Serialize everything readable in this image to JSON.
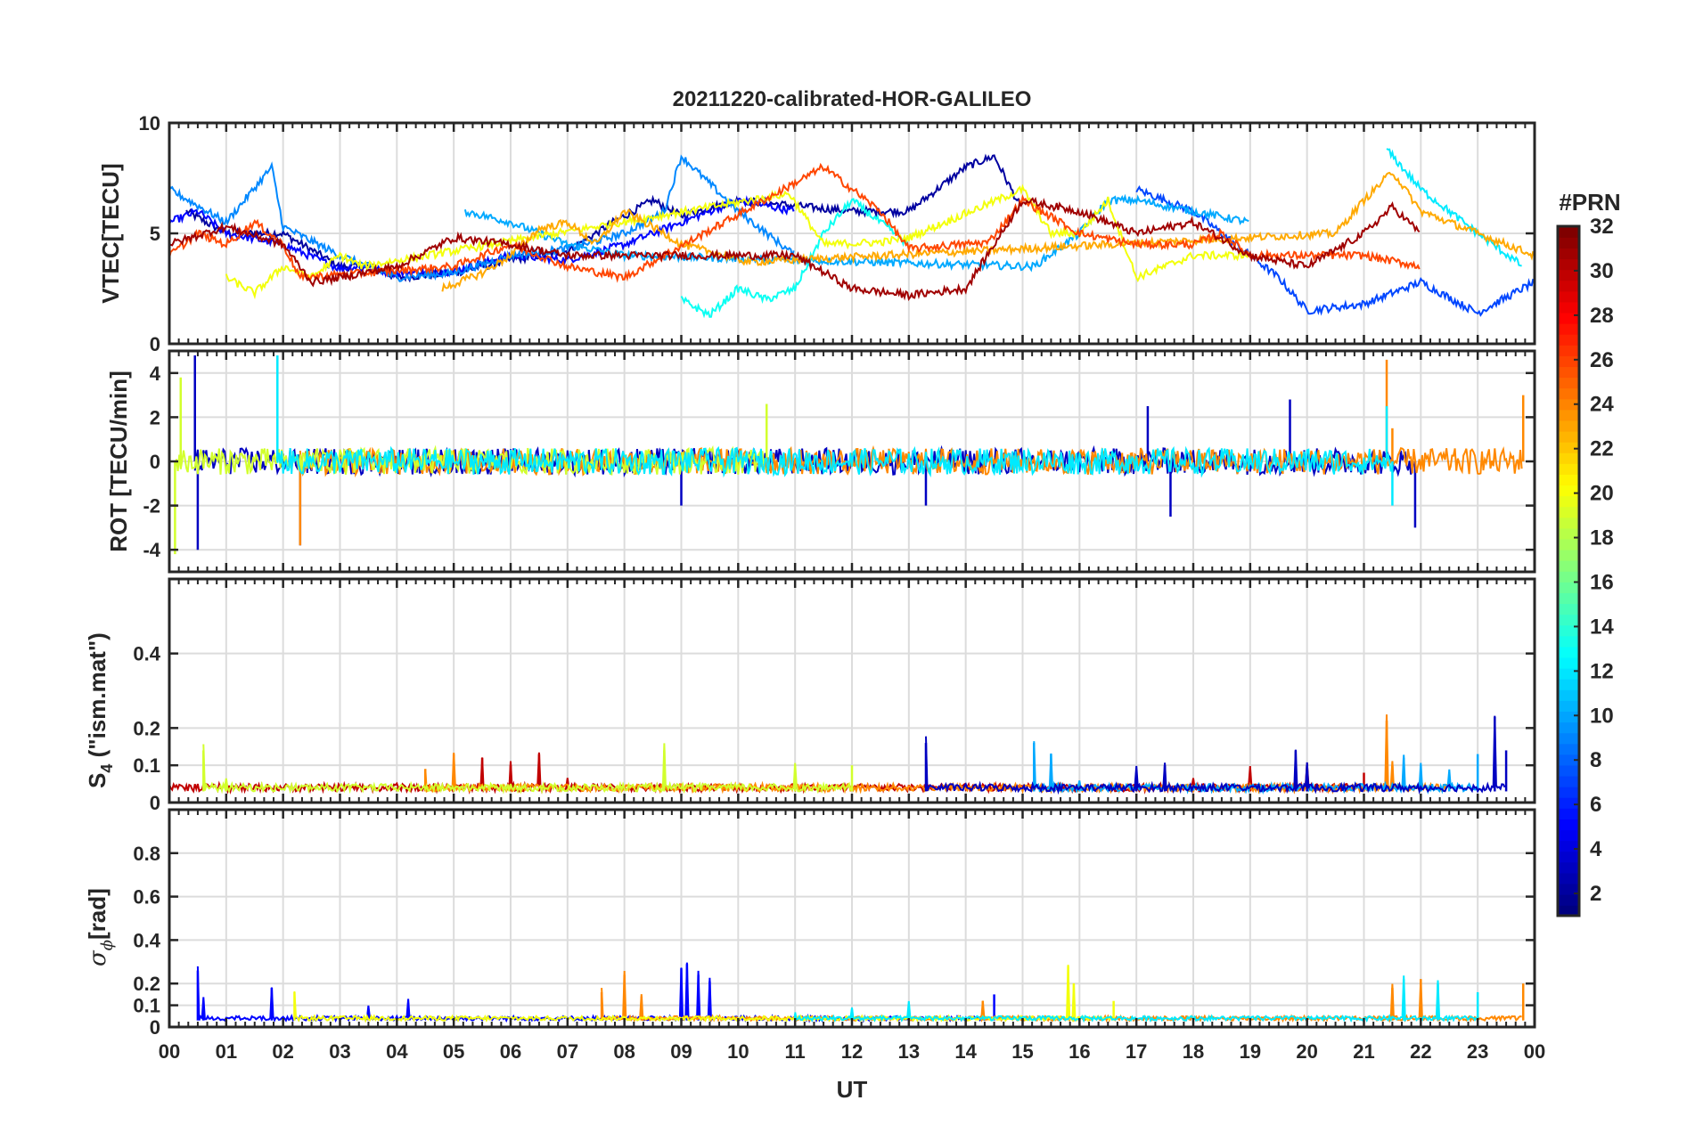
{
  "figure_title": "20211220-calibrated-HOR-GALILEO",
  "colorbar": {
    "label": "#PRN",
    "range": [
      1,
      32
    ],
    "ticks": [
      2,
      4,
      6,
      8,
      10,
      12,
      14,
      16,
      18,
      20,
      22,
      24,
      26,
      28,
      30,
      32
    ],
    "colormap": "jet"
  },
  "colors": {
    "axis": "#262626",
    "grid": "#dcdcdc",
    "background": "#ffffff"
  },
  "x_axis": {
    "label": "UT",
    "range": [
      0,
      24
    ],
    "ticks": [
      0,
      1,
      2,
      3,
      4,
      5,
      6,
      7,
      8,
      9,
      10,
      11,
      12,
      13,
      14,
      15,
      16,
      17,
      18,
      19,
      20,
      21,
      22,
      23,
      24
    ],
    "tick_labels": [
      "00",
      "01",
      "02",
      "03",
      "04",
      "05",
      "06",
      "07",
      "08",
      "09",
      "10",
      "11",
      "12",
      "13",
      "14",
      "15",
      "16",
      "17",
      "18",
      "19",
      "20",
      "21",
      "22",
      "23",
      "00"
    ]
  },
  "chart_data": [
    {
      "type": "line",
      "panel": "vtec",
      "ylabel": "VTEC[TECU]",
      "ylim": [
        0,
        10
      ],
      "yticks": [
        0,
        5,
        10
      ],
      "grid": true,
      "series": [
        {
          "name": "PRN 2",
          "prn": 2,
          "x": [
            0.3,
            1,
            2,
            3,
            3.5,
            4,
            5,
            6,
            7,
            7.8,
            8.5,
            9,
            10,
            12,
            13,
            14,
            14.5,
            15
          ],
          "y": [
            6,
            5,
            5,
            3.5,
            3.5,
            3,
            3.2,
            3.8,
            4.2,
            5.5,
            6.5,
            5.8,
            6.5,
            6,
            6,
            8,
            8.5,
            6
          ]
        },
        {
          "name": "PRN 5",
          "prn": 5,
          "x": [
            0,
            0.5,
            1,
            2,
            3,
            3.3,
            4,
            5,
            6,
            7,
            8,
            9,
            10,
            11
          ],
          "y": [
            5.5,
            6,
            5,
            4.5,
            3.4,
            3.5,
            3.2,
            3.3,
            4,
            3.8,
            4.5,
            5.5,
            6.5,
            6
          ]
        },
        {
          "name": "PRN 7",
          "prn": 7,
          "x": [
            17,
            18,
            19,
            19.5,
            20,
            21,
            22,
            22.7,
            23,
            24
          ],
          "y": [
            7,
            6,
            4,
            3,
            1.5,
            1.8,
            2.8,
            1.8,
            1.4,
            2.8
          ]
        },
        {
          "name": "PRN 9",
          "prn": 9,
          "x": [
            0,
            1,
            1.8,
            2,
            3,
            4,
            5,
            6,
            7,
            8,
            8.7,
            9,
            10,
            11
          ],
          "y": [
            7,
            5.5,
            8,
            5.3,
            4,
            3,
            3.2,
            4,
            4.3,
            5,
            6,
            8.5,
            6,
            4
          ]
        },
        {
          "name": "PRN 10",
          "prn": 10,
          "x": [
            5.2,
            6,
            7,
            8,
            15.2,
            16,
            16.5,
            17,
            18,
            19
          ],
          "y": [
            6,
            5.5,
            4.5,
            4,
            3.5,
            5,
            6.5,
            6.5,
            6,
            5.5
          ]
        },
        {
          "name": "PRN 13",
          "prn": 13,
          "x": [
            9,
            9.5,
            10,
            10.5,
            11,
            11.5,
            12,
            13
          ],
          "y": [
            2,
            1.3,
            2.5,
            2,
            2.5,
            5,
            6.5,
            4.5
          ]
        },
        {
          "name": "PRN 12",
          "prn": 12,
          "x": [
            21.4,
            22,
            23,
            23.8
          ],
          "y": [
            8.8,
            7,
            5,
            3.5
          ]
        },
        {
          "name": "PRN 20",
          "prn": 20,
          "x": [
            1,
            1.5,
            2,
            2.5,
            3,
            3.4,
            10.9,
            11.5,
            12.5,
            13,
            15,
            15.5,
            16,
            16.5,
            17,
            18,
            19
          ],
          "y": [
            3,
            2.3,
            3.5,
            3,
            4,
            3.5,
            6.8,
            4.5,
            4.6,
            4.8,
            7,
            5,
            5,
            6.5,
            3,
            4,
            4
          ]
        },
        {
          "name": "PRN 23",
          "prn": 23,
          "x": [
            4.8,
            5.5,
            6,
            6.5,
            7,
            7.5,
            8,
            8.7,
            9,
            10.2,
            20.5,
            21,
            21.5,
            22,
            23,
            24
          ],
          "y": [
            2.5,
            3.2,
            4,
            5.2,
            5.5,
            4.5,
            6,
            5,
            4.5,
            3.7,
            5,
            6.5,
            7.8,
            6,
            5,
            4
          ]
        },
        {
          "name": "PRN 26",
          "prn": 26,
          "x": [
            0,
            0.5,
            1,
            1.5,
            2,
            2.3,
            5,
            6,
            7,
            8,
            11.5,
            12,
            12.5,
            13,
            14.4,
            15,
            16,
            17,
            18,
            18.5,
            19,
            20,
            21,
            22
          ],
          "y": [
            4,
            5,
            4.5,
            5.5,
            4.5,
            3,
            3.5,
            4.5,
            3.5,
            3,
            8,
            7,
            6,
            4.3,
            4.6,
            6.5,
            5,
            4.5,
            4.5,
            5,
            4,
            4,
            4,
            3.5
          ]
        },
        {
          "name": "PRN 31",
          "prn": 31,
          "x": [
            0,
            1,
            2,
            2.5,
            3,
            4,
            5,
            6,
            7,
            11,
            12,
            13,
            14,
            15,
            16,
            17,
            18,
            19,
            20,
            21,
            21.5,
            22
          ],
          "y": [
            4.5,
            5.3,
            4.5,
            2.8,
            3,
            3.5,
            4.8,
            4.5,
            4,
            4,
            2.5,
            2.2,
            2.5,
            6.5,
            6,
            5,
            5.5,
            4,
            3.5,
            5,
            6.2,
            5
          ]
        }
      ]
    },
    {
      "type": "line",
      "panel": "rot",
      "ylabel": "ROT [TECU/min]",
      "ylim": [
        -5,
        5
      ],
      "yticks": [
        -4,
        -2,
        0,
        2,
        4
      ],
      "grid": true,
      "series_summary": "dense noisy traces around 0 for all PRNs; largest spikes near 00:30 (+4.8/-4), 02:20 (-3.8), 21:40 (+4.6) and 21:50 (-3)",
      "series": [
        {
          "name": "PRN 3",
          "prn": 3,
          "x": [
            0.45,
            0.5,
            2.3,
            9,
            13.3,
            17.2,
            17.6,
            19.7,
            21.9
          ],
          "y": [
            4.8,
            -4,
            -3.8,
            -2,
            -2,
            2.5,
            -2.5,
            2.8,
            -3
          ]
        },
        {
          "name": "PRN 24",
          "prn": 24,
          "x": [
            2.3,
            21.4,
            21.5,
            23.8
          ],
          "y": [
            -3.8,
            4.6,
            1.5,
            3
          ]
        },
        {
          "name": "PRN 19",
          "prn": 19,
          "x": [
            0.1,
            0.2,
            10.5
          ],
          "y": [
            -4.2,
            3.8,
            2.6
          ]
        },
        {
          "name": "PRN 12",
          "prn": 12,
          "x": [
            1.9,
            21.4,
            21.5
          ],
          "y": [
            4.8,
            2.5,
            -2
          ]
        }
      ]
    },
    {
      "type": "line",
      "panel": "s4",
      "ylabel": "S4 (\"ism.mat\")",
      "ylim": [
        0,
        0.6
      ],
      "yticks": [
        0,
        0.1,
        0.2,
        0.4
      ],
      "grid": true,
      "series": [
        {
          "name": "PRN 30",
          "prn": 30,
          "x": [
            0,
            4,
            5,
            5.5,
            6,
            6.5,
            7,
            18,
            19,
            20,
            21
          ],
          "y": [
            0.03,
            0.04,
            0.08,
            0.12,
            0.1,
            0.13,
            0.05,
            0.06,
            0.08,
            0.1,
            0.08
          ]
        },
        {
          "name": "PRN 24",
          "prn": 24,
          "x": [
            4.5,
            5,
            21.4,
            21.5,
            22,
            22.5
          ],
          "y": [
            0.09,
            0.13,
            0.22,
            0.1,
            0.06,
            0.05
          ]
        },
        {
          "name": "PRN 10",
          "prn": 10,
          "x": [
            15.2,
            15.5,
            16,
            21.7,
            22,
            22.5,
            23
          ],
          "y": [
            0.16,
            0.13,
            0.04,
            0.12,
            0.1,
            0.08,
            0.13
          ]
        },
        {
          "name": "PRN 3",
          "prn": 3,
          "x": [
            13.3,
            17,
            17.5,
            19.8,
            20,
            23.3,
            23.5
          ],
          "y": [
            0.16,
            0.08,
            0.1,
            0.14,
            0.1,
            0.23,
            0.14
          ]
        },
        {
          "name": "PRN 19",
          "prn": 19,
          "x": [
            0.6,
            1,
            8.7,
            11,
            12
          ],
          "y": [
            0.14,
            0.06,
            0.14,
            0.1,
            0.1
          ]
        }
      ]
    },
    {
      "type": "line",
      "panel": "sigma_phi",
      "ylabel": "σϕ[rad]",
      "ylim": [
        0,
        1
      ],
      "yticks": [
        0,
        0.1,
        0.2,
        0.4,
        0.6,
        0.8
      ],
      "grid": true,
      "series": [
        {
          "name": "PRN 5",
          "prn": 5,
          "x": [
            0.5,
            0.6,
            1.8,
            3.5,
            4.2,
            9,
            9.1,
            9.3,
            9.5,
            14.5
          ],
          "y": [
            0.26,
            0.12,
            0.18,
            0.08,
            0.11,
            0.27,
            0.29,
            0.24,
            0.21,
            0.15
          ]
        },
        {
          "name": "PRN 24",
          "prn": 24,
          "x": [
            7.6,
            8,
            8.3,
            14.3,
            21.5,
            22,
            23.8
          ],
          "y": [
            0.16,
            0.24,
            0.14,
            0.12,
            0.18,
            0.22,
            0.2
          ]
        },
        {
          "name": "PRN 20",
          "prn": 20,
          "x": [
            2.2,
            15.8,
            15.9,
            16.6
          ],
          "y": [
            0.16,
            0.28,
            0.2,
            0.12
          ]
        },
        {
          "name": "PRN 12",
          "prn": 12,
          "x": [
            11,
            12,
            13,
            21.7,
            22.3,
            23
          ],
          "y": [
            0.06,
            0.08,
            0.1,
            0.22,
            0.2,
            0.16
          ]
        }
      ]
    }
  ]
}
